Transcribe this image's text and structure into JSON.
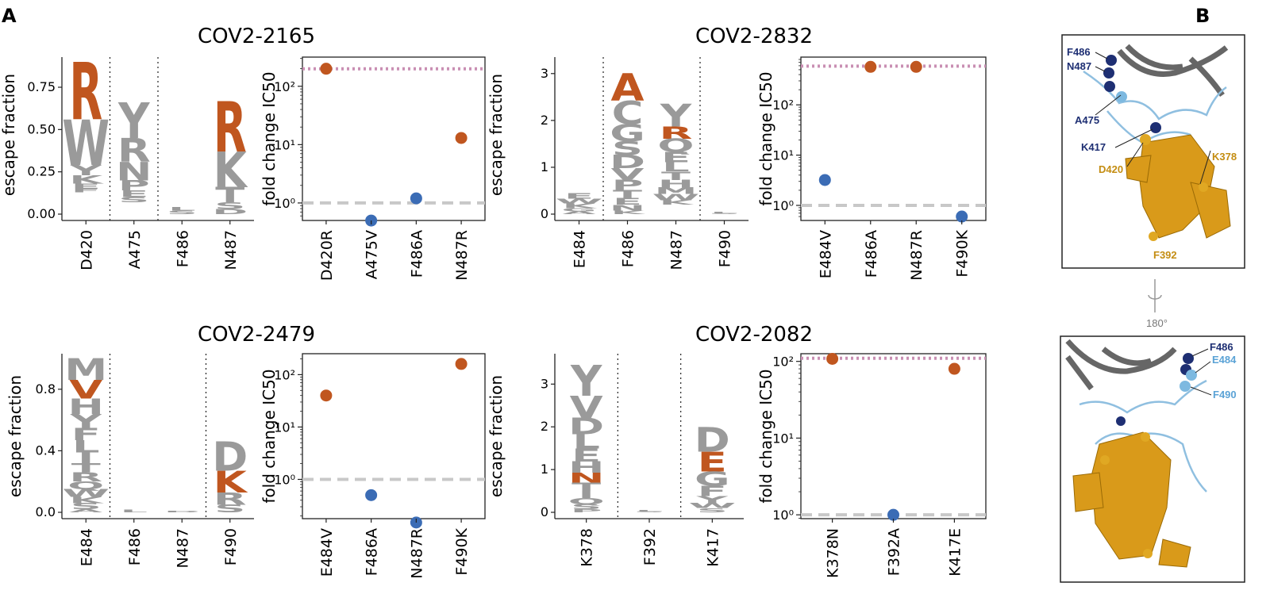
{
  "panel_a_letter": "A",
  "panel_b_letter": "B",
  "colors": {
    "orange": "#c0561f",
    "gray": "#9a9a9a",
    "blue": "#3b6cb5",
    "pink": "#c98fb3",
    "ref": "#c8c8c8"
  },
  "chart_data": [
    {
      "type": "logo",
      "antibody": "COV2-2165",
      "ylabel": "escape fraction",
      "yticks": [
        "0.00",
        "0.25",
        "0.50",
        "0.75"
      ],
      "ymax": 0.9,
      "sites": [
        {
          "label": "D420",
          "total": 0.9,
          "letters": [
            [
              "R",
              0.34,
              "o"
            ],
            [
              "W",
              0.27,
              "g"
            ],
            [
              "Y",
              0.06,
              "g"
            ],
            [
              "K",
              0.05,
              "g"
            ],
            [
              "E",
              0.03,
              "g"
            ],
            [
              "F",
              0.02,
              "g"
            ]
          ]
        },
        {
          "label": "A475",
          "total": 0.66,
          "letters": [
            [
              "Y",
              0.21,
              "g"
            ],
            [
              "R",
              0.14,
              "g"
            ],
            [
              "N",
              0.11,
              "g"
            ],
            [
              "P",
              0.06,
              "g"
            ],
            [
              "E",
              0.04,
              "g"
            ],
            [
              "S",
              0.03,
              "g"
            ]
          ]
        },
        {
          "label": "F486",
          "total": 0.04,
          "letters": [
            [
              "L",
              0.02,
              "g"
            ],
            [
              "S",
              0.02,
              "g"
            ]
          ]
        },
        {
          "label": "N487",
          "total": 0.67,
          "letters": [
            [
              "R",
              0.3,
              "o"
            ],
            [
              "K",
              0.21,
              "g"
            ],
            [
              "T",
              0.09,
              "g"
            ],
            [
              "S",
              0.04,
              "g"
            ],
            [
              "D",
              0.03,
              "g"
            ]
          ]
        }
      ],
      "separators_after": [
        0,
        1
      ]
    },
    {
      "type": "scatter",
      "ylabel": "fold change IC50",
      "yticks": [
        [
          "10⁰",
          0
        ],
        [
          "10¹",
          1
        ],
        [
          "10²",
          2
        ]
      ],
      "ylog_range": [
        -0.3,
        2.5
      ],
      "max_line": 2.3,
      "categories": [
        "D420R",
        "A475V",
        "F486A",
        "N487R"
      ],
      "values": [
        200,
        0.5,
        1.2,
        13
      ],
      "escape": [
        true,
        false,
        false,
        true
      ]
    },
    {
      "type": "logo",
      "antibody": "COV2-2832",
      "ylabel": "escape fraction",
      "yticks": [
        "0",
        "1",
        "2",
        "3"
      ],
      "ymax": 3.25,
      "sites": [
        {
          "label": "E484",
          "total": 0.45,
          "letters": [
            [
              "E",
              0.12,
              "g"
            ],
            [
              "W",
              0.1,
              "g"
            ],
            [
              "K",
              0.1,
              "g"
            ],
            [
              "G",
              0.07,
              "g"
            ],
            [
              "A",
              0.06,
              "g"
            ]
          ]
        },
        {
          "label": "F486",
          "total": 3.0,
          "letters": [
            [
              "A",
              0.58,
              "o"
            ],
            [
              "C",
              0.5,
              "g"
            ],
            [
              "G",
              0.36,
              "g"
            ],
            [
              "S",
              0.3,
              "g"
            ],
            [
              "D",
              0.28,
              "g"
            ],
            [
              "V",
              0.24,
              "g"
            ],
            [
              "P",
              0.22,
              "g"
            ],
            [
              "T",
              0.18,
              "g"
            ],
            [
              "E",
              0.14,
              "g"
            ],
            [
              "N",
              0.12,
              "g"
            ],
            [
              "K",
              0.08,
              "g"
            ]
          ]
        },
        {
          "label": "N487",
          "total": 2.35,
          "letters": [
            [
              "Y",
              0.48,
              "g"
            ],
            [
              "R",
              0.26,
              "o"
            ],
            [
              "Q",
              0.28,
              "g"
            ],
            [
              "E",
              0.22,
              "g"
            ],
            [
              "L",
              0.2,
              "g"
            ],
            [
              "T",
              0.18,
              "g"
            ],
            [
              "H",
              0.16,
              "g"
            ],
            [
              "M",
              0.14,
              "g"
            ],
            [
              "W",
              0.13,
              "g"
            ],
            [
              "K",
              0.1,
              "g"
            ]
          ]
        },
        {
          "label": "F490",
          "total": 0.05,
          "letters": [
            [
              "L",
              0.03,
              "g"
            ],
            [
              "S",
              0.02,
              "g"
            ]
          ]
        }
      ],
      "separators_after": [
        0,
        2
      ]
    },
    {
      "type": "scatter",
      "ylabel": "fold change IC50",
      "yticks": [
        [
          "10⁰",
          0
        ],
        [
          "10¹",
          1
        ],
        [
          "10²",
          2
        ]
      ],
      "ylog_range": [
        -0.3,
        2.95
      ],
      "max_line": 2.77,
      "categories": [
        "E484V",
        "F486A",
        "N487R",
        "F490K"
      ],
      "values": [
        3.2,
        570,
        570,
        0.6
      ],
      "escape": [
        false,
        true,
        true,
        false
      ]
    },
    {
      "type": "logo",
      "antibody": "COV2-2479",
      "ylabel": "escape fraction",
      "yticks": [
        "0.0",
        "0.4",
        "0.8"
      ],
      "ymax": 1.0,
      "sites": [
        {
          "label": "E484",
          "total": 1.0,
          "letters": [
            [
              "M",
              0.14,
              "g"
            ],
            [
              "V",
              0.12,
              "o"
            ],
            [
              "H",
              0.1,
              "g"
            ],
            [
              "Y",
              0.09,
              "g"
            ],
            [
              "F",
              0.08,
              "g"
            ],
            [
              "L",
              0.08,
              "g"
            ],
            [
              "I",
              0.07,
              "g"
            ],
            [
              "T",
              0.06,
              "g"
            ],
            [
              "R",
              0.06,
              "g"
            ],
            [
              "Q",
              0.05,
              "g"
            ],
            [
              "W",
              0.05,
              "g"
            ],
            [
              "K",
              0.04,
              "g"
            ],
            [
              "S",
              0.04,
              "g"
            ],
            [
              "A",
              0.02,
              "g"
            ]
          ]
        },
        {
          "label": "F486",
          "total": 0.015,
          "letters": [
            [
              "L",
              0.015,
              "g"
            ]
          ]
        },
        {
          "label": "N487",
          "total": 0.01,
          "letters": [
            [
              "D",
              0.01,
              "g"
            ]
          ]
        },
        {
          "label": "F490",
          "total": 0.46,
          "letters": [
            [
              "D",
              0.19,
              "g"
            ],
            [
              "K",
              0.14,
              "o"
            ],
            [
              "R",
              0.08,
              "g"
            ],
            [
              "S",
              0.05,
              "g"
            ]
          ]
        }
      ],
      "separators_after": [
        0,
        2
      ]
    },
    {
      "type": "scatter",
      "ylabel": "fold change IC50",
      "yticks": [
        [
          "10⁰",
          0
        ],
        [
          "10¹",
          1
        ],
        [
          "10²",
          2
        ]
      ],
      "ylog_range": [
        -0.75,
        2.4
      ],
      "max_line": null,
      "categories": [
        "E484V",
        "F486A",
        "N487R",
        "F490K"
      ],
      "values": [
        40,
        0.5,
        0.15,
        160
      ],
      "escape": [
        true,
        false,
        false,
        true
      ]
    },
    {
      "type": "logo",
      "antibody": "COV2-2082",
      "ylabel": "escape fraction",
      "yticks": [
        "0",
        "1",
        "2",
        "3"
      ],
      "ymax": 3.6,
      "sites": [
        {
          "label": "K378",
          "total": 3.45,
          "letters": [
            [
              "Y",
              0.72,
              "g"
            ],
            [
              "V",
              0.52,
              "g"
            ],
            [
              "D",
              0.38,
              "g"
            ],
            [
              "L",
              0.34,
              "g"
            ],
            [
              "E",
              0.3,
              "g"
            ],
            [
              "H",
              0.26,
              "g"
            ],
            [
              "N",
              0.24,
              "o"
            ],
            [
              "T",
              0.2,
              "g"
            ],
            [
              "I",
              0.16,
              "g"
            ],
            [
              "Q",
              0.14,
              "g"
            ],
            [
              "S",
              0.12,
              "g"
            ],
            [
              "P",
              0.07,
              "g"
            ]
          ]
        },
        {
          "label": "F392",
          "total": 0.05,
          "letters": [
            [
              "L",
              0.03,
              "g"
            ],
            [
              "S",
              0.02,
              "g"
            ]
          ]
        },
        {
          "label": "K417",
          "total": 2.0,
          "letters": [
            [
              "D",
              0.58,
              "g"
            ],
            [
              "E",
              0.46,
              "o"
            ],
            [
              "G",
              0.34,
              "g"
            ],
            [
              "F",
              0.24,
              "g"
            ],
            [
              "Y",
              0.16,
              "g"
            ],
            [
              "W",
              0.12,
              "g"
            ],
            [
              "S",
              0.1,
              "g"
            ]
          ]
        }
      ],
      "separators_after": [
        0,
        1
      ]
    },
    {
      "type": "scatter",
      "ylabel": "fold change IC50",
      "yticks": [
        [
          "10⁰",
          0
        ],
        [
          "10¹",
          1
        ],
        [
          "10²",
          2
        ]
      ],
      "ylog_range": [
        -0.05,
        2.1
      ],
      "max_line": 2.04,
      "categories": [
        "K378N",
        "F392A",
        "K417E"
      ],
      "values": [
        108,
        1.0,
        80
      ],
      "escape": [
        true,
        false,
        true
      ]
    }
  ],
  "structure": {
    "top_labels": [
      {
        "text": "F486",
        "tone": "navy"
      },
      {
        "text": "N487",
        "tone": "navy"
      },
      {
        "text": "A475",
        "tone": "navy"
      },
      {
        "text": "K417",
        "tone": "navy"
      },
      {
        "text": "K378",
        "tone": "gold"
      },
      {
        "text": "D420",
        "tone": "gold"
      },
      {
        "text": "F392",
        "tone": "gold"
      }
    ],
    "bottom_labels": [
      {
        "text": "F486",
        "tone": "navy"
      },
      {
        "text": "E484",
        "tone": "light"
      },
      {
        "text": "F490",
        "tone": "light"
      }
    ],
    "rotation_label": "180°"
  }
}
